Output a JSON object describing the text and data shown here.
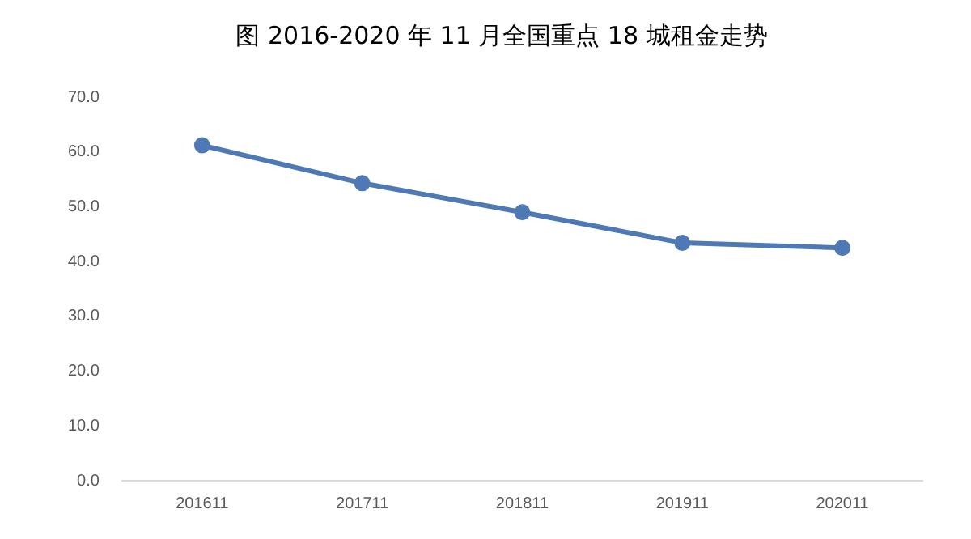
{
  "chart_data": {
    "type": "line",
    "title": "图  2016-2020 年 11 月全国重点 18 城租金走势",
    "categories": [
      "201611",
      "201711",
      "201811",
      "201911",
      "202011"
    ],
    "series": [
      {
        "color": "#4e79b4",
        "values": [
          61.2,
          54.3,
          49.0,
          43.4,
          42.5
        ]
      }
    ],
    "ylim": [
      0,
      70
    ],
    "yticks": [
      {
        "value": 0,
        "label": "0.0"
      },
      {
        "value": 10,
        "label": "10.0"
      },
      {
        "value": 20,
        "label": "20.0"
      },
      {
        "value": 30,
        "label": "30.0"
      },
      {
        "value": 40,
        "label": "40.0"
      },
      {
        "value": 50,
        "label": "50.0"
      },
      {
        "value": 60,
        "label": "60.0"
      },
      {
        "value": 70,
        "label": "70.0"
      }
    ],
    "grid": false,
    "legend": false,
    "marker": "circle",
    "line_style": "solid"
  }
}
